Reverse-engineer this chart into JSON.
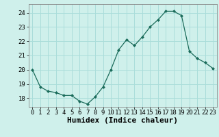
{
  "x": [
    0,
    1,
    2,
    3,
    4,
    5,
    6,
    7,
    8,
    9,
    10,
    11,
    12,
    13,
    14,
    15,
    16,
    17,
    18,
    19,
    20,
    21,
    22,
    23
  ],
  "y": [
    20.0,
    18.8,
    18.5,
    18.4,
    18.2,
    18.2,
    17.8,
    17.6,
    18.1,
    18.8,
    20.0,
    21.4,
    22.1,
    21.7,
    22.3,
    23.0,
    23.5,
    24.1,
    24.1,
    23.8,
    21.3,
    20.8,
    20.5,
    20.1
  ],
  "xlabel": "Humidex (Indice chaleur)",
  "line_color": "#1a6b5a",
  "marker": "D",
  "marker_size": 2.0,
  "bg_color": "#cff0eb",
  "grid_color": "#aaddda",
  "ylim": [
    17.4,
    24.6
  ],
  "yticks": [
    18,
    19,
    20,
    21,
    22,
    23,
    24
  ],
  "xticks": [
    0,
    1,
    2,
    3,
    4,
    5,
    6,
    7,
    8,
    9,
    10,
    11,
    12,
    13,
    14,
    15,
    16,
    17,
    18,
    19,
    20,
    21,
    22,
    23
  ],
  "tick_fontsize": 6.5,
  "label_fontsize": 8.0,
  "spine_color": "#888888"
}
